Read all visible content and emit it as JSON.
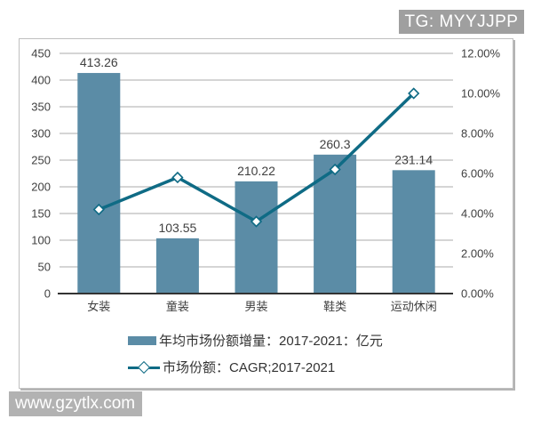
{
  "watermarks": {
    "top_right": "TG: MYYJJPP",
    "bottom_left": "www.gzytlx.com"
  },
  "chart_data": {
    "type": "bar",
    "subtype": "bar-line-combo",
    "title": "",
    "xlabel": "",
    "ylabel": "",
    "categories": [
      "女装",
      "童装",
      "男装",
      "鞋类",
      "运动休闲"
    ],
    "series": [
      {
        "name": "年均市场份额增量：2017-2021：亿元",
        "type": "bar",
        "axis": "left",
        "values": [
          413.26,
          103.55,
          210.22,
          260.3,
          231.14
        ]
      },
      {
        "name": "市场份额：CAGR;2017-2021",
        "type": "line",
        "axis": "right",
        "values": [
          4.2,
          5.8,
          3.6,
          6.2,
          10.0
        ],
        "unit": "%"
      }
    ],
    "axes": {
      "left": {
        "min": 0,
        "max": 450,
        "step": 50,
        "ticks": [
          "0",
          "50",
          "100",
          "150",
          "200",
          "250",
          "300",
          "350",
          "400",
          "450"
        ]
      },
      "right": {
        "min": 0,
        "max": 12,
        "step": 2,
        "ticks": [
          "0.00%",
          "2.00%",
          "4.00%",
          "6.00%",
          "8.00%",
          "10.00%",
          "12.00%"
        ]
      }
    },
    "grid": true,
    "legend_position": "bottom"
  },
  "colors": {
    "bar": "#5b8ca6",
    "line": "#0f6b85",
    "grid": "#ababab",
    "axis_line": "#333333",
    "text": "#404040",
    "badge_bg": "#9f9f9f",
    "watermark_bg": "#b2b2b2"
  }
}
